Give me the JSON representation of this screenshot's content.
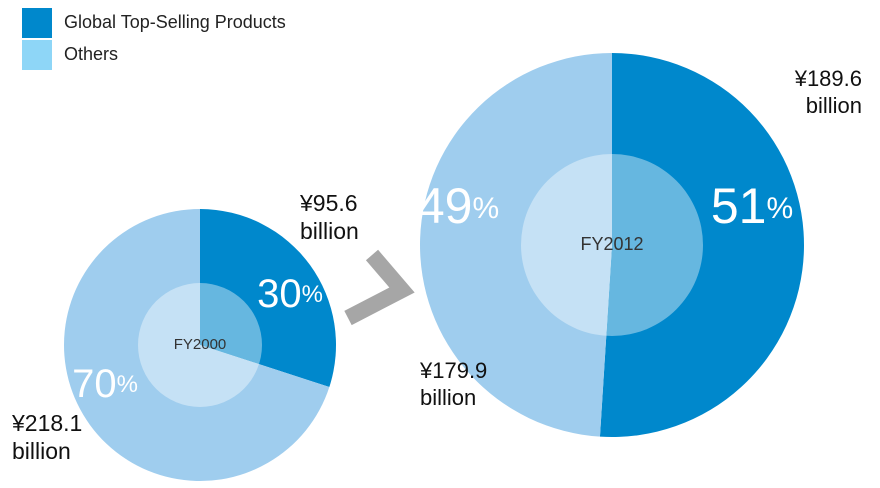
{
  "chart_data": [
    {
      "type": "pie",
      "center_label": "FY2000",
      "categories": [
        "Global Top-Selling Products",
        "Others"
      ],
      "values": [
        30,
        70
      ],
      "value_labels": [
        "30%",
        "70%"
      ],
      "amount_labels": [
        [
          "¥95.6",
          "billion"
        ],
        [
          "¥218.1",
          "billion"
        ]
      ],
      "colors": [
        "#0088cc",
        "#9fcdee"
      ]
    },
    {
      "type": "pie",
      "center_label": "FY2012",
      "categories": [
        "Global Top-Selling Products",
        "Others"
      ],
      "values": [
        51,
        49
      ],
      "value_labels": [
        "51%",
        "49%"
      ],
      "amount_labels": [
        [
          "¥189.6",
          "billion"
        ],
        [
          "¥179.9",
          "billion"
        ]
      ],
      "colors": [
        "#0088cc",
        "#9fcdee"
      ]
    }
  ]
}
